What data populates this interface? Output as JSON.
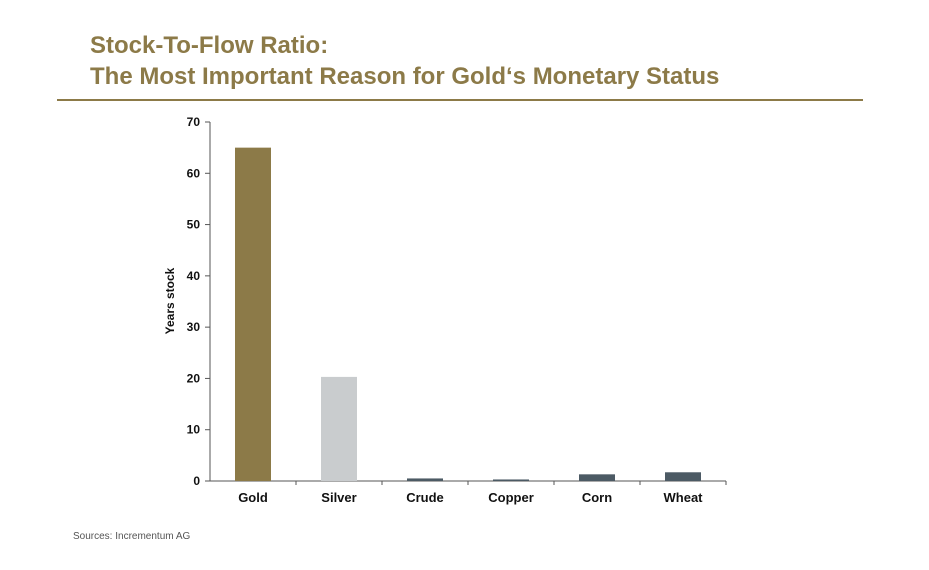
{
  "title": {
    "line1": "Stock-To-Flow Ratio:",
    "line2": "The Most Important Reason for Gold‘s Monetary Status"
  },
  "source": "Sources: Incrementum AG",
  "colors": {
    "title": "#8c7a48",
    "gold": "#8c7a48",
    "silver": "#c9ccce",
    "others": "#4c5a64"
  },
  "chart_data": {
    "type": "bar",
    "categories": [
      "Gold",
      "Silver",
      "Crude",
      "Copper",
      "Corn",
      "Wheat"
    ],
    "values": [
      65,
      20.3,
      0.5,
      0.3,
      1.3,
      1.7
    ],
    "bar_colors": [
      "#8c7a48",
      "#c9ccce",
      "#4c5a64",
      "#4c5a64",
      "#4c5a64",
      "#4c5a64"
    ],
    "title": "",
    "xlabel": "",
    "ylabel": "Years stock",
    "ylim": [
      0,
      70
    ],
    "yticks": [
      0,
      10,
      20,
      30,
      40,
      50,
      60,
      70
    ],
    "grid": false,
    "legend": "none"
  }
}
